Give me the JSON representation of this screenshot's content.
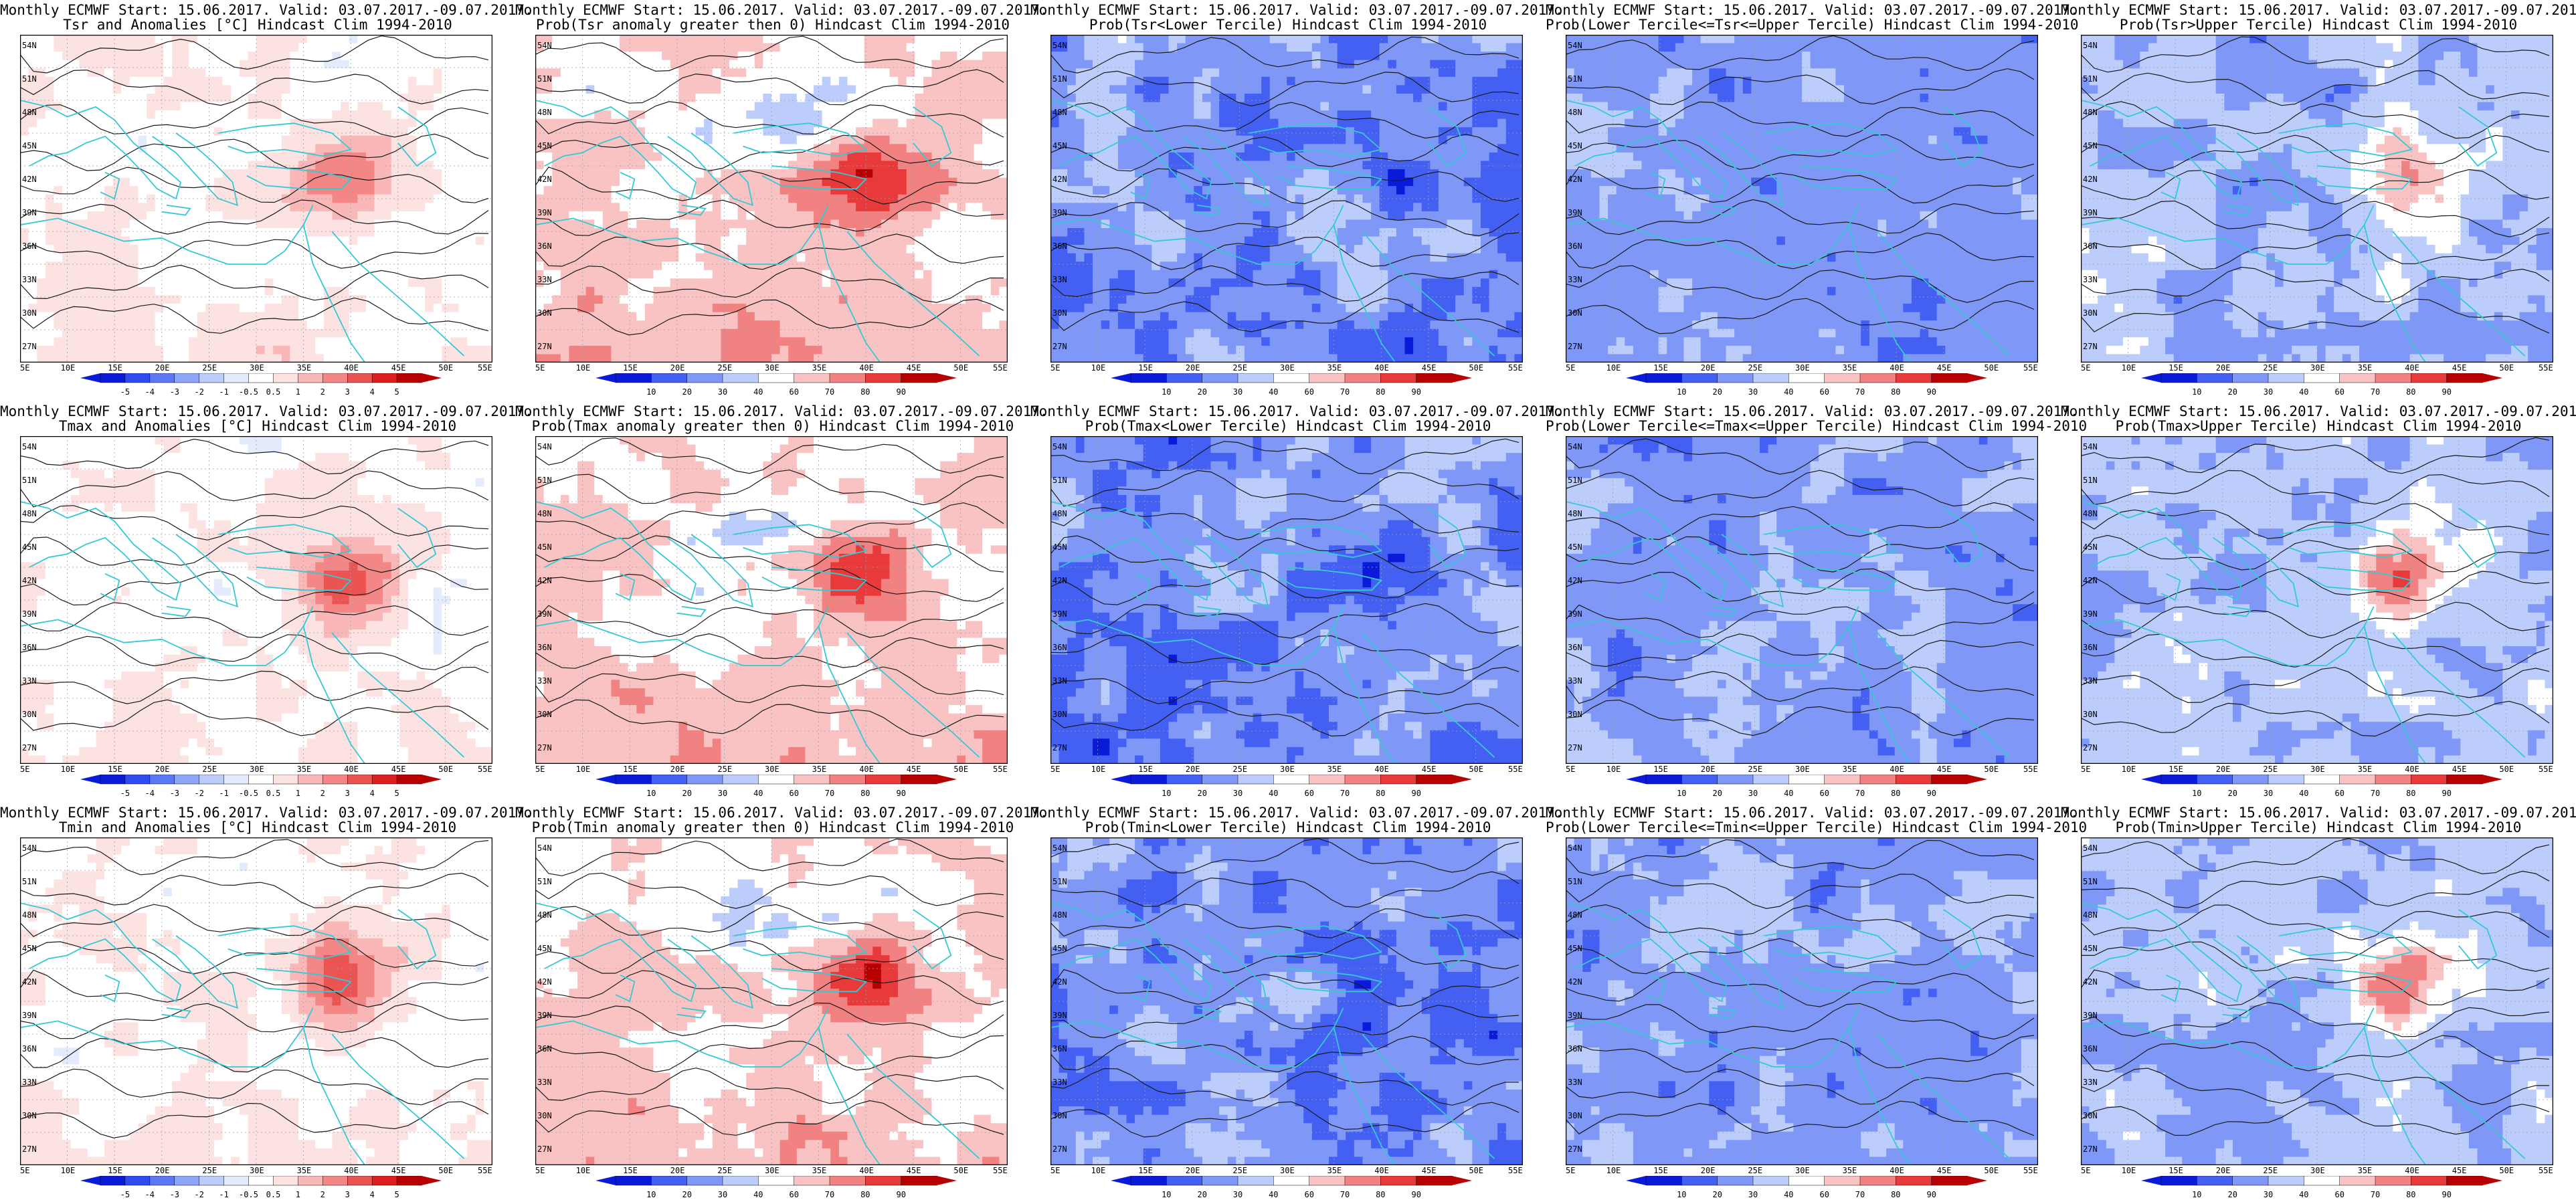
{
  "header_prefix": "Monthly ECMWF Start: 15.06.2017. Valid: 03.07.2017.-09.07.2017.",
  "rows": [
    {
      "variable": "Tsr",
      "panels": [
        {
          "title": "Tsr and Anomalies [°C] Hindcast Clim 1994-2010",
          "kind": "anomaly"
        },
        {
          "title": "Prob(Tsr anomaly greater then 0) Hindcast Clim 1994-2010",
          "kind": "prob_warm"
        },
        {
          "title": "Prob(Tsr<Lower Tercile) Hindcast Clim 1994-2010",
          "kind": "prob_cold"
        },
        {
          "title": "Prob(Lower Tercile<=Tsr<=Upper Tercile) Hindcast Clim 1994-2010",
          "kind": "prob_mid"
        },
        {
          "title": "Prob(Tsr>Upper Tercile) Hindcast Clim 1994-2010",
          "kind": "prob_upper"
        }
      ]
    },
    {
      "variable": "Tmax",
      "panels": [
        {
          "title": "Tmax and Anomalies [°C] Hindcast Clim 1994-2010",
          "kind": "anomaly"
        },
        {
          "title": "Prob(Tmax anomaly greater then 0) Hindcast Clim 1994-2010",
          "kind": "prob_warm"
        },
        {
          "title": "Prob(Tmax<Lower Tercile) Hindcast Clim 1994-2010",
          "kind": "prob_cold"
        },
        {
          "title": "Prob(Lower Tercile<=Tmax<=Upper Tercile) Hindcast Clim 1994-2010",
          "kind": "prob_mid"
        },
        {
          "title": "Prob(Tmax>Upper Tercile) Hindcast Clim 1994-2010",
          "kind": "prob_upper"
        }
      ]
    },
    {
      "variable": "Tmin",
      "panels": [
        {
          "title": "Tmin and Anomalies [°C] Hindcast Clim 1994-2010",
          "kind": "anomaly"
        },
        {
          "title": "Prob(Tmin anomaly greater then 0) Hindcast Clim 1994-2010",
          "kind": "prob_warm"
        },
        {
          "title": "Prob(Tmin<Lower Tercile) Hindcast Clim 1994-2010",
          "kind": "prob_cold"
        },
        {
          "title": "Prob(Lower Tercile<=Tmin<=Upper Tercile) Hindcast Clim 1994-2010",
          "kind": "prob_mid"
        },
        {
          "title": "Prob(Tmin>Upper Tercile) Hindcast Clim 1994-2010",
          "kind": "prob_upper"
        }
      ]
    }
  ],
  "lon_ticks": [
    "5E",
    "10E",
    "15E",
    "20E",
    "25E",
    "30E",
    "35E",
    "40E",
    "45E",
    "50E",
    "55E"
  ],
  "lat_ticks": [
    "54N",
    "51N",
    "48N",
    "45N",
    "42N",
    "39N",
    "36N",
    "33N",
    "30N",
    "27N"
  ],
  "anomaly_scale": {
    "labels": [
      "-5",
      "-4",
      "-3",
      "-2",
      "-1",
      "-0.5",
      "0.5",
      "1",
      "2",
      "3",
      "4",
      "5"
    ],
    "colors": [
      "#0b1ad8",
      "#2e4cf0",
      "#5a78f5",
      "#8ea6f8",
      "#bccdfb",
      "#e4ebfd",
      "#ffffff",
      "#fde2e2",
      "#f9b7b7",
      "#f48686",
      "#ec5454",
      "#dc1e1e",
      "#b80000"
    ]
  },
  "prob_scale": {
    "labels": [
      "10",
      "20",
      "30",
      "40",
      "60",
      "70",
      "80",
      "90"
    ],
    "colors": [
      "#0b1ad8",
      "#4460f2",
      "#7f98f7",
      "#bccdfb",
      "#ffffff",
      "#f9c3c3",
      "#f28181",
      "#e83a3a",
      "#b80000"
    ]
  },
  "palette": {
    "coast": "#35c9d4",
    "contour": "#1a1a1a",
    "grid": "#9aa0b0"
  }
}
